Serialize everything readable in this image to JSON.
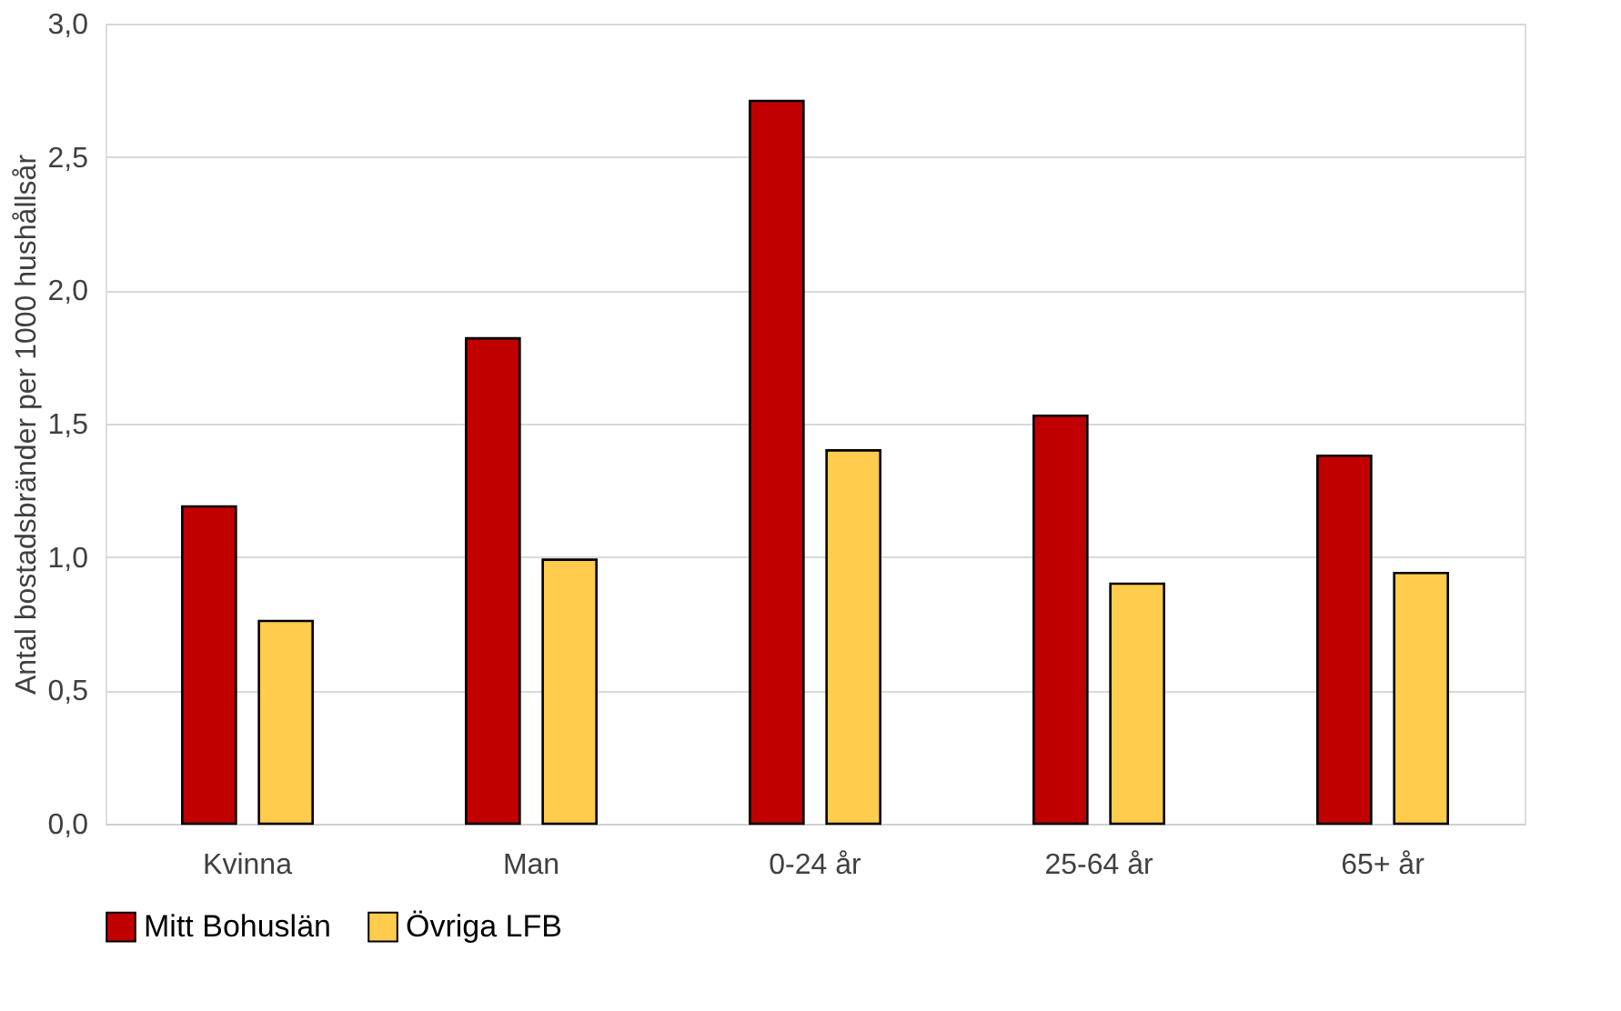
{
  "chart_data": {
    "type": "bar",
    "ylabel": "Antal bostadsbränder per 1000 hushållsår",
    "categories": [
      "Kvinna",
      "Man",
      "0-24 år",
      "25-64 år",
      "65+ år"
    ],
    "series": [
      {
        "name": "Mitt Bohuslän",
        "color": "#c00000",
        "values": [
          1.19,
          1.82,
          2.71,
          1.53,
          1.38
        ]
      },
      {
        "name": "Övriga LFB",
        "color": "#ffcc4d",
        "values": [
          0.76,
          0.99,
          1.4,
          0.9,
          0.94
        ]
      }
    ],
    "ylim": [
      0,
      3
    ],
    "yticks": [
      {
        "value": 0,
        "label": "0,0"
      },
      {
        "value": 0.5,
        "label": "0,5"
      },
      {
        "value": 1,
        "label": "1,0"
      },
      {
        "value": 1.5,
        "label": "1,5"
      },
      {
        "value": 2,
        "label": "2,0"
      },
      {
        "value": 2.5,
        "label": "2,5"
      },
      {
        "value": 3,
        "label": "3,0"
      }
    ],
    "grid": "y",
    "legend": "bottom"
  }
}
